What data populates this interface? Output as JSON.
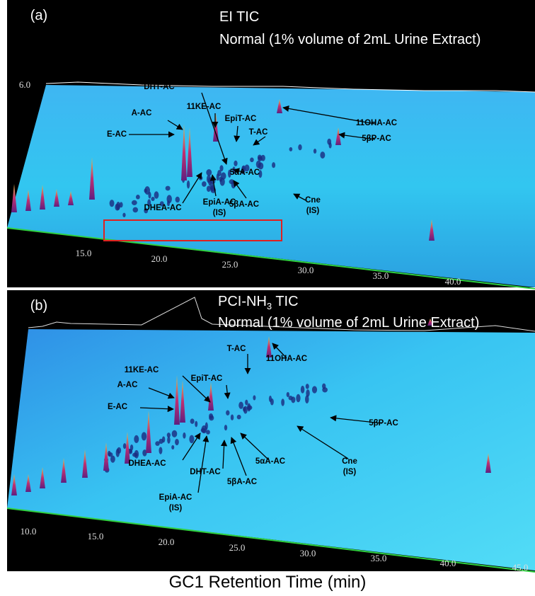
{
  "panels": [
    {
      "label": "(a)",
      "title": [
        {
          "text": "EI TIC"
        }
      ],
      "subtitle": "Normal (1% volume of 2mL Urine Extract)",
      "yticks": [
        "6.0"
      ],
      "xticks": [
        "15.0",
        "20.0",
        "25.0",
        "30.0",
        "35.0",
        "40.0"
      ],
      "annotations": [
        {
          "text": "A-AC"
        },
        {
          "text": "E-AC"
        },
        {
          "text": "DHT-AC"
        },
        {
          "text": "11KE-AC"
        },
        {
          "text": "EpiT-AC"
        },
        {
          "text": "T-AC"
        },
        {
          "text": "11OHA-AC"
        },
        {
          "text": "5βP-AC"
        },
        {
          "text": "5αA-AC"
        },
        {
          "text": "DHEA-AC"
        },
        {
          "text": "EpiA-AC",
          "note": "(IS)"
        },
        {
          "text": "5βA-AC"
        },
        {
          "text": "Cne",
          "note": "(IS)"
        }
      ]
    },
    {
      "label": "(b)",
      "title": [
        {
          "text": "PCI-NH"
        },
        {
          "text": "3",
          "sub": true
        },
        {
          "text": " TIC"
        }
      ],
      "subtitle": "Normal (1% volume of 2mL Urine Extract)",
      "yticks": [],
      "xticks": [
        "10.0",
        "15.0",
        "20.0",
        "25.0",
        "30.0",
        "35.0",
        "40.0",
        "45.0"
      ],
      "annotations": [
        {
          "text": "11KE-AC"
        },
        {
          "text": "A-AC"
        },
        {
          "text": "E-AC"
        },
        {
          "text": "EpiT-AC"
        },
        {
          "text": "T-AC"
        },
        {
          "text": "11OHA-AC"
        },
        {
          "text": "5βP-AC"
        },
        {
          "text": "DHEA-AC"
        },
        {
          "text": "EpiA-AC",
          "note": "(IS)"
        },
        {
          "text": "DHT-AC"
        },
        {
          "text": "5βA-AC"
        },
        {
          "text": "5αA-AC"
        },
        {
          "text": "Cne",
          "note": "(IS)"
        }
      ]
    }
  ],
  "xlabel": "GC1 Retention Time (min)"
}
